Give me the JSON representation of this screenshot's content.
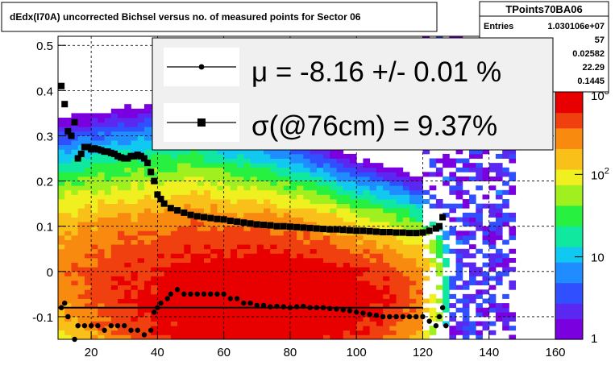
{
  "title": "dEdx(I70A) uncorrected Bichsel versus no. of measured points for Sector 06",
  "stats": {
    "name": "TPoints70BA06",
    "rows": [
      {
        "label": "Entries",
        "value": "1.030106e+07"
      },
      {
        "label": "",
        "value": "57"
      },
      {
        "label": "",
        "value": "0.02582"
      },
      {
        "label": "",
        "value": "22.29"
      },
      {
        "label": "",
        "value": "0.1445"
      }
    ]
  },
  "legend": {
    "mu_text": "μ  = -8.16 +/-  0.01 %",
    "sigma_text": "σ(@76cm) =  9.37%"
  },
  "colors": {
    "background": "#ffffff",
    "markers": "#000000",
    "palette": [
      "#7a00e0",
      "#5a28f0",
      "#3050ff",
      "#1f8cff",
      "#10c8f0",
      "#10e8a0",
      "#28f040",
      "#a0f020",
      "#f0f020",
      "#f8c018",
      "#f88a10",
      "#f04010",
      "#e80000"
    ]
  },
  "chart_data": {
    "type": "heatmap",
    "title": "dEdx(I70A) uncorrected Bichsel versus no. of measured points for Sector 06",
    "xlim": [
      10,
      160
    ],
    "ylim": [
      -0.15,
      0.52
    ],
    "x_ticks": [
      20,
      40,
      60,
      80,
      100,
      120,
      140,
      160
    ],
    "y_ticks": [
      -0.1,
      0,
      0.1,
      0.2,
      0.3,
      0.4,
      0.5
    ],
    "y_tick_labels": [
      "-0.1",
      "0",
      "0.1",
      "0.2",
      "0.3",
      "0.4",
      "0.5"
    ],
    "grid": true,
    "colorbar": {
      "scale": "log",
      "min": 1,
      "max": 1000,
      "ticks": [
        1,
        10,
        100,
        1000
      ],
      "tick_labels": [
        "1",
        "10",
        "10^2",
        "10^3"
      ]
    },
    "density_model": {
      "ridge_x": [
        10,
        20,
        30,
        40,
        50,
        60,
        70,
        80,
        90,
        100,
        110,
        120,
        125,
        128
      ],
      "ridge_y": [
        0.0,
        -0.02,
        -0.04,
        -0.06,
        -0.06,
        -0.07,
        -0.07,
        -0.07,
        -0.07,
        -0.07,
        -0.06,
        -0.05,
        -0.04,
        -0.03
      ],
      "log10_peak": [
        2.4,
        2.6,
        2.75,
        2.85,
        2.95,
        3.0,
        3.05,
        3.05,
        3.0,
        2.9,
        2.75,
        2.45,
        1.8,
        1.0
      ],
      "sigma_y": [
        0.16,
        0.17,
        0.18,
        0.19,
        0.19,
        0.18,
        0.17,
        0.16,
        0.15,
        0.14,
        0.13,
        0.12,
        0.12,
        0.12
      ],
      "scatter_x_range": [
        120,
        147
      ]
    },
    "series": [
      {
        "name": "μ",
        "marker": "circle",
        "points": [
          [
            11,
            -0.08
          ],
          [
            12,
            -0.07
          ],
          [
            13,
            -0.1
          ],
          [
            15,
            -0.15
          ],
          [
            16,
            -0.12
          ],
          [
            18,
            -0.12
          ],
          [
            20,
            -0.12
          ],
          [
            22,
            -0.12
          ],
          [
            24,
            -0.13
          ],
          [
            26,
            -0.12
          ],
          [
            28,
            -0.12
          ],
          [
            30,
            -0.12
          ],
          [
            32,
            -0.13
          ],
          [
            34,
            -0.13
          ],
          [
            36,
            -0.14
          ],
          [
            38,
            -0.13
          ],
          [
            39,
            -0.09
          ],
          [
            40,
            -0.08
          ],
          [
            41,
            -0.07
          ],
          [
            43,
            -0.06
          ],
          [
            44,
            -0.05
          ],
          [
            46,
            -0.04
          ],
          [
            48,
            -0.05
          ],
          [
            50,
            -0.05
          ],
          [
            52,
            -0.05
          ],
          [
            54,
            -0.05
          ],
          [
            56,
            -0.05
          ],
          [
            58,
            -0.05
          ],
          [
            60,
            -0.05
          ],
          [
            62,
            -0.06
          ],
          [
            64,
            -0.06
          ],
          [
            66,
            -0.07
          ],
          [
            68,
            -0.07
          ],
          [
            70,
            -0.075
          ],
          [
            72,
            -0.075
          ],
          [
            74,
            -0.078
          ],
          [
            76,
            -0.077
          ],
          [
            78,
            -0.078
          ],
          [
            80,
            -0.08
          ],
          [
            82,
            -0.078
          ],
          [
            84,
            -0.077
          ],
          [
            86,
            -0.08
          ],
          [
            88,
            -0.08
          ],
          [
            90,
            -0.08
          ],
          [
            92,
            -0.082
          ],
          [
            94,
            -0.083
          ],
          [
            96,
            -0.085
          ],
          [
            98,
            -0.087
          ],
          [
            100,
            -0.09
          ],
          [
            102,
            -0.092
          ],
          [
            104,
            -0.095
          ],
          [
            106,
            -0.097
          ],
          [
            108,
            -0.1
          ],
          [
            110,
            -0.1
          ],
          [
            112,
            -0.1
          ],
          [
            114,
            -0.1
          ],
          [
            116,
            -0.1
          ],
          [
            118,
            -0.1
          ],
          [
            120,
            -0.1
          ],
          [
            122,
            -0.11
          ],
          [
            124,
            -0.12
          ],
          [
            125,
            -0.1
          ],
          [
            126,
            -0.08
          ],
          [
            127,
            -0.12
          ]
        ]
      },
      {
        "name": "σ(@76cm)",
        "marker": "square",
        "points": [
          [
            11,
            0.41
          ],
          [
            12,
            0.37
          ],
          [
            13,
            0.31
          ],
          [
            14,
            0.3
          ],
          [
            15,
            0.33
          ],
          [
            16,
            0.25
          ],
          [
            17,
            0.26
          ],
          [
            18,
            0.275
          ],
          [
            19,
            0.275
          ],
          [
            20,
            0.27
          ],
          [
            21,
            0.272
          ],
          [
            22,
            0.27
          ],
          [
            23,
            0.268
          ],
          [
            24,
            0.265
          ],
          [
            25,
            0.265
          ],
          [
            26,
            0.262
          ],
          [
            27,
            0.26
          ],
          [
            28,
            0.255
          ],
          [
            29,
            0.252
          ],
          [
            30,
            0.25
          ],
          [
            31,
            0.25
          ],
          [
            32,
            0.255
          ],
          [
            33,
            0.255
          ],
          [
            34,
            0.258
          ],
          [
            35,
            0.255
          ],
          [
            36,
            0.25
          ],
          [
            37,
            0.24
          ],
          [
            38,
            0.22
          ],
          [
            39,
            0.2
          ],
          [
            40,
            0.17
          ],
          [
            41,
            0.16
          ],
          [
            42,
            0.15
          ],
          [
            44,
            0.14
          ],
          [
            46,
            0.135
          ],
          [
            48,
            0.13
          ],
          [
            50,
            0.125
          ],
          [
            52,
            0.122
          ],
          [
            54,
            0.12
          ],
          [
            56,
            0.118
          ],
          [
            58,
            0.116
          ],
          [
            60,
            0.115
          ],
          [
            62,
            0.112
          ],
          [
            64,
            0.11
          ],
          [
            66,
            0.108
          ],
          [
            68,
            0.106
          ],
          [
            70,
            0.104
          ],
          [
            72,
            0.103
          ],
          [
            74,
            0.102
          ],
          [
            76,
            0.1
          ],
          [
            78,
            0.1
          ],
          [
            80,
            0.099
          ],
          [
            82,
            0.098
          ],
          [
            84,
            0.097
          ],
          [
            86,
            0.096
          ],
          [
            88,
            0.095
          ],
          [
            90,
            0.094
          ],
          [
            92,
            0.093
          ],
          [
            94,
            0.093
          ],
          [
            96,
            0.092
          ],
          [
            98,
            0.091
          ],
          [
            100,
            0.09
          ],
          [
            102,
            0.09
          ],
          [
            104,
            0.089
          ],
          [
            106,
            0.088
          ],
          [
            108,
            0.087
          ],
          [
            110,
            0.087
          ],
          [
            112,
            0.086
          ],
          [
            114,
            0.086
          ],
          [
            116,
            0.085
          ],
          [
            118,
            0.085
          ],
          [
            120,
            0.086
          ],
          [
            122,
            0.09
          ],
          [
            124,
            0.095
          ],
          [
            125,
            0.1
          ],
          [
            126,
            0.12
          ]
        ]
      }
    ],
    "reference_line": {
      "x": [
        10,
        120
      ],
      "y": [
        -0.08,
        -0.08
      ]
    }
  }
}
